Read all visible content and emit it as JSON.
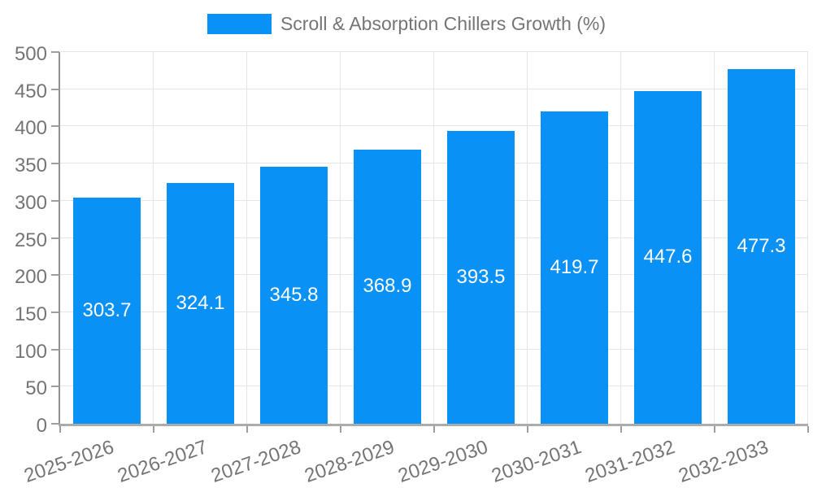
{
  "chart_data": {
    "type": "bar",
    "title": "Scroll & Absorption Chillers Growth (%)",
    "legend_position": "top",
    "categories": [
      "2025-2026",
      "2026-2027",
      "2027-2028",
      "2028-2029",
      "2029-2030",
      "2030-2031",
      "2031-2032",
      "2032-2033"
    ],
    "series": [
      {
        "name": "Scroll & Absorption Chillers Growth (%)",
        "values": [
          303.7,
          324.1,
          345.8,
          368.9,
          393.5,
          419.7,
          447.6,
          477.3
        ]
      }
    ],
    "bar_value_labels": [
      "303.7",
      "324.1",
      "345.8",
      "368.9",
      "393.5",
      "419.7",
      "447.6",
      "477.3"
    ],
    "xlabel": "",
    "ylabel": "",
    "ylim": [
      0,
      500
    ],
    "ytick_step": 50,
    "ytick_labels": [
      "0",
      "50",
      "100",
      "150",
      "200",
      "250",
      "300",
      "350",
      "400",
      "450",
      "500"
    ],
    "grid": "both",
    "x_label_rotation_deg": -19
  },
  "colors": {
    "background": "#ffffff",
    "bar": "#0991f5",
    "bar_label_text": "#ffffff",
    "axis_line": "#8f8f8f",
    "baseline": "#ababab",
    "tick_mark": "#9e9e9e",
    "gridline": "#e6e6e6",
    "text": "#757575"
  }
}
